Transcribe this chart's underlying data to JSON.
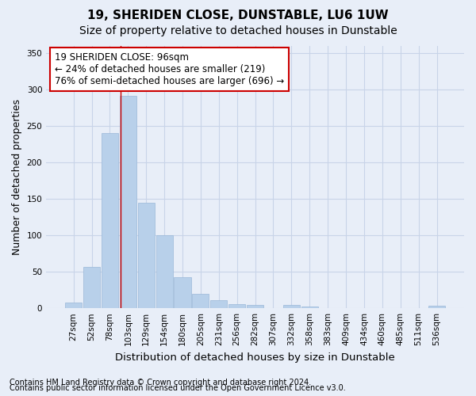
{
  "title": "19, SHERIDEN CLOSE, DUNSTABLE, LU6 1UW",
  "subtitle": "Size of property relative to detached houses in Dunstable",
  "xlabel": "Distribution of detached houses by size in Dunstable",
  "ylabel": "Number of detached properties",
  "categories": [
    "27sqm",
    "52sqm",
    "78sqm",
    "103sqm",
    "129sqm",
    "154sqm",
    "180sqm",
    "205sqm",
    "231sqm",
    "256sqm",
    "282sqm",
    "307sqm",
    "332sqm",
    "358sqm",
    "383sqm",
    "409sqm",
    "434sqm",
    "460sqm",
    "485sqm",
    "511sqm",
    "536sqm"
  ],
  "values": [
    8,
    57,
    240,
    291,
    145,
    100,
    42,
    20,
    11,
    6,
    4,
    0,
    4,
    2,
    0,
    0,
    0,
    0,
    0,
    0,
    3
  ],
  "bar_color": "#b8d0ea",
  "bar_edge_color": "#9ab8d8",
  "annotation_text": "19 SHERIDEN CLOSE: 96sqm\n← 24% of detached houses are smaller (219)\n76% of semi-detached houses are larger (696) →",
  "annotation_box_color": "#ffffff",
  "annotation_box_edge": "#cc0000",
  "ylim": [
    0,
    360
  ],
  "yticks": [
    0,
    50,
    100,
    150,
    200,
    250,
    300,
    350
  ],
  "grid_color": "#c8d4e8",
  "bg_color": "#e8eef8",
  "red_line_x": 2.575,
  "footer1": "Contains HM Land Registry data © Crown copyright and database right 2024.",
  "footer2": "Contains public sector information licensed under the Open Government Licence v3.0.",
  "title_fontsize": 11,
  "subtitle_fontsize": 10,
  "axis_label_fontsize": 9,
  "tick_fontsize": 7.5,
  "annotation_fontsize": 8.5,
  "footer_fontsize": 7
}
